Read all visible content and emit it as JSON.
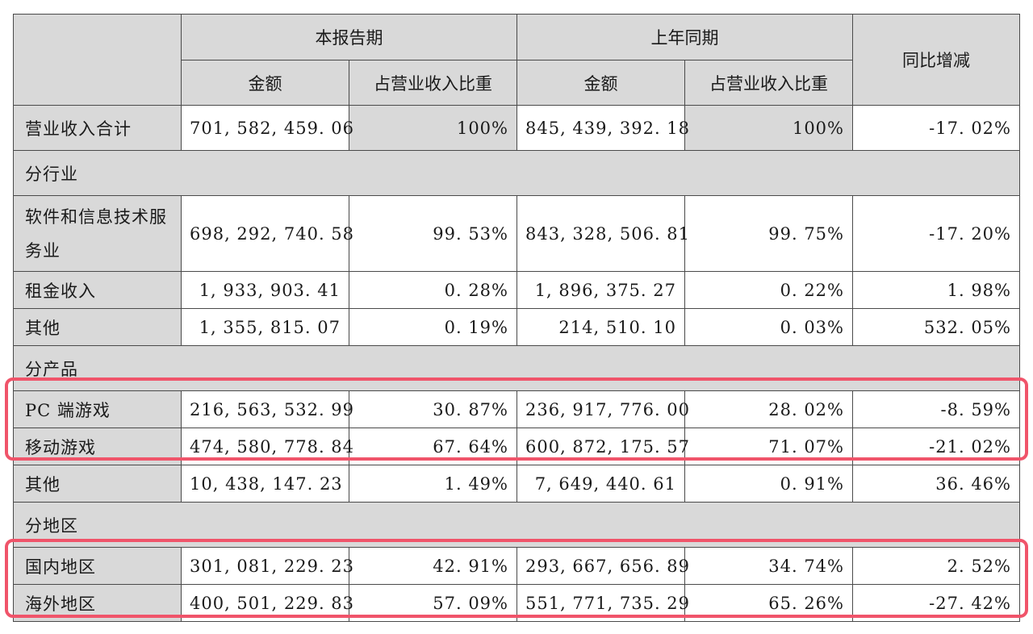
{
  "header": {
    "current_period": "本报告期",
    "prior_period": "上年同期",
    "yoy_change": "同比增减",
    "amount": "金额",
    "share_of_revenue": "占营业收入比重"
  },
  "total_row": {
    "label": "营业收入合计",
    "current_amount": "701, 582, 459. 06",
    "current_share": "100%",
    "prior_amount": "845, 439, 392. 18",
    "prior_share": "100%",
    "yoy": "-17. 02%"
  },
  "sections": {
    "by_industry": "分行业",
    "by_product": "分产品",
    "by_region": "分地区"
  },
  "industry_rows": [
    {
      "label": "软件和信息技术服务业",
      "current_amount": "698, 292, 740. 58",
      "current_share": "99. 53%",
      "prior_amount": "843, 328, 506. 81",
      "prior_share": "99. 75%",
      "yoy": "-17. 20%"
    },
    {
      "label": "租金收入",
      "current_amount": "1, 933, 903. 41",
      "current_share": "0. 28%",
      "prior_amount": "1, 896, 375. 27",
      "prior_share": "0. 22%",
      "yoy": "1. 98%"
    },
    {
      "label": "其他",
      "current_amount": "1, 355, 815. 07",
      "current_share": "0. 19%",
      "prior_amount": "214, 510. 10",
      "prior_share": "0. 03%",
      "yoy": "532. 05%"
    }
  ],
  "product_rows": [
    {
      "label": "PC 端游戏",
      "current_amount": "216, 563, 532. 99",
      "current_share": "30. 87%",
      "prior_amount": "236, 917, 776. 00",
      "prior_share": "28. 02%",
      "yoy": "-8. 59%"
    },
    {
      "label": "移动游戏",
      "current_amount": "474, 580, 778. 84",
      "current_share": "67. 64%",
      "prior_amount": "600, 872, 175. 57",
      "prior_share": "71. 07%",
      "yoy": "-21. 02%"
    },
    {
      "label": "其他",
      "current_amount": "10, 438, 147. 23",
      "current_share": "1. 49%",
      "prior_amount": "7, 649, 440. 61",
      "prior_share": "0. 91%",
      "yoy": "36. 46%"
    }
  ],
  "region_rows": [
    {
      "label": "国内地区",
      "current_amount": "301, 081, 229. 23",
      "current_share": "42. 91%",
      "prior_amount": "293, 667, 656. 89",
      "prior_share": "34. 74%",
      "yoy": "2. 52%"
    },
    {
      "label": "海外地区",
      "current_amount": "400, 501, 229. 83",
      "current_share": "57. 09%",
      "prior_amount": "551, 771, 735. 29",
      "prior_share": "65. 26%",
      "yoy": "-27. 42%"
    }
  ],
  "colors": {
    "header_bg": "#d9d9d9",
    "highlight_border": "#f0546a"
  }
}
